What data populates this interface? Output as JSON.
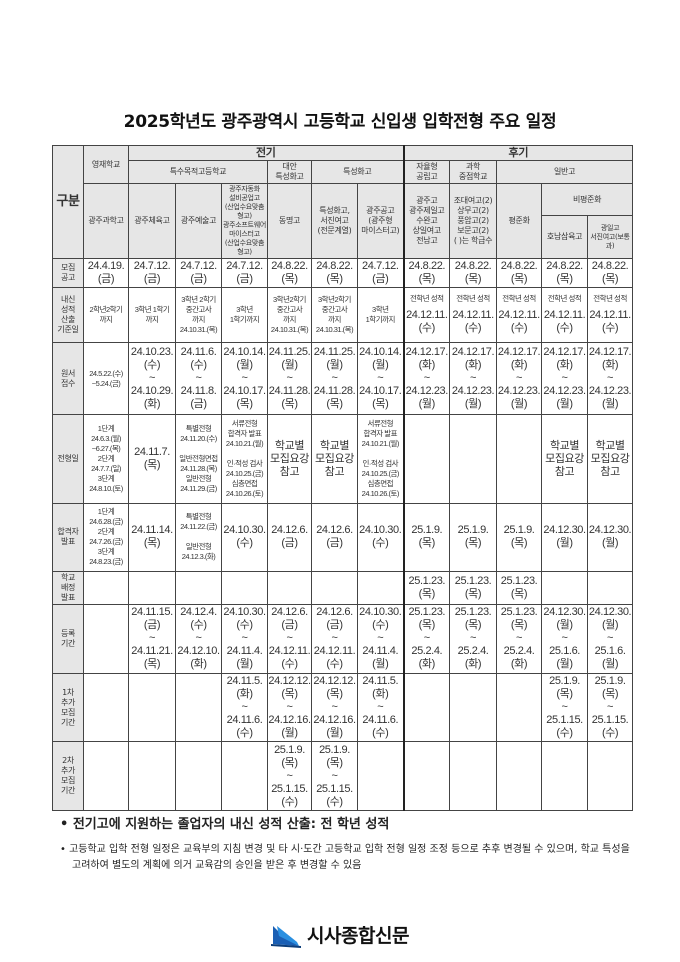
{
  "title": "2025학년도 광주광역시 고등학교 신입생 입학전형 주요 일정",
  "header": {
    "gubun": "구분",
    "jeongi": "전기",
    "hugi": "후기",
    "yeongjae": "영재학교",
    "teuksu": "특수목적고등학교",
    "daean": "대안\n특성화고",
    "teukseong": "특성화고",
    "jayul": "자율형\n공립고",
    "gwahak": "과학\n중점학교",
    "ilban": "일반고",
    "bipyeongjun": "비평준화",
    "schools": {
      "gwangju_sci": "광주과학고",
      "gwangju_pe": "광주체육고",
      "gwangju_art": "광주예술고",
      "auto_sw": "광주자동화\n설비공업고\n(산업수요맞춤형고)\n광주소프트웨어\n마이스터고\n(산업수요맞춤형고)",
      "dongmyeong": "동명고",
      "seojin_voc": "특성화고,\n서진여고\n(전문계열)",
      "gwangju_tech": "광주공고\n(광주형\n마이스터고)",
      "autonomous": "광주고\n광주제일고\n수완고\n상일여고\n전남고",
      "science_focus": "조대여고(2)\n상무고(2)\n풍암고(2)\n보문고(2)\n( )는 학급수",
      "pyeongjun": "평준화",
      "honam": "호남삼육고",
      "gwangil": "광일고\n서진여고(보통과)"
    }
  },
  "rows": [
    {
      "label": "모집\n공고",
      "cells": [
        {
          "t": "24.4.19.\n(금)"
        },
        {
          "t": "24.7.12.\n(금)"
        },
        {
          "t": "24.7.12.\n(금)"
        },
        {
          "t": "24.7.12.\n(금)"
        },
        {
          "t": "24.8.22.\n(목)"
        },
        {
          "t": "24.8.22.\n(목)"
        },
        {
          "t": "24.7.12.\n(금)"
        },
        {
          "t": "24.8.22.\n(목)"
        },
        {
          "t": "24.8.22.\n(목)"
        },
        {
          "t": "24.8.22.\n(목)"
        },
        {
          "t": "24.8.22.\n(목)"
        },
        {
          "t": "24.8.22.\n(목)"
        }
      ]
    },
    {
      "label": "내신\n성적\n산출\n기준일",
      "cells": [
        {
          "s": "2학년2학기\n까지"
        },
        {
          "s": "3학년 1학기\n까지"
        },
        {
          "s": "3학년 2학기\n중간고사\n까지\n24.10.31.(목)"
        },
        {
          "s": "3학년\n1학기까지"
        },
        {
          "s": "3학년2학기\n중간고사\n까지\n24.10.31.(목)"
        },
        {
          "s": "3학년2학기\n중간고사\n까지\n24.10.31.(목)"
        },
        {
          "s": "3학년\n1학기까지"
        },
        {
          "n": "전학년 성적",
          "t": "24.12.11.\n(수)"
        },
        {
          "n": "전학년 성적",
          "t": "24.12.11.\n(수)"
        },
        {
          "n": "전학년 성적",
          "t": "24.12.11.\n(수)"
        },
        {
          "n": "전학년 성적",
          "t": "24.12.11.\n(수)"
        },
        {
          "n": "전학년 성적",
          "t": "24.12.11.\n(수)"
        }
      ]
    },
    {
      "label": "원서\n접수",
      "cells": [
        {
          "s": "24.5.22.(수)\n~5.24.(금)"
        },
        {
          "t": "24.10.23.\n(수)\n~\n24.10.29.\n(화)"
        },
        {
          "t": "24.11.6.\n(수)\n~\n24.11.8.\n(금)"
        },
        {
          "t": "24.10.14.\n(월)\n~\n24.10.17.\n(목)"
        },
        {
          "t": "24.11.25.\n(월)\n~\n24.11.28.\n(목)"
        },
        {
          "t": "24.11.25.\n(월)\n~\n24.11.28.\n(목)"
        },
        {
          "t": "24.10.14.\n(월)\n~\n24.10.17.\n(목)"
        },
        {
          "t": "24.12.17.\n(화)\n~\n24.12.23.\n(월)"
        },
        {
          "t": "24.12.17.\n(화)\n~\n24.12.23.\n(월)"
        },
        {
          "t": "24.12.17.\n(화)\n~\n24.12.23.\n(월)"
        },
        {
          "t": "24.12.17.\n(화)\n~\n24.12.23.\n(월)"
        },
        {
          "t": "24.12.17.\n(화)\n~\n24.12.23.\n(월)"
        }
      ]
    },
    {
      "label": "전형일",
      "cells": [
        {
          "s": "1단계\n24.6.3.(월)\n~6.27.(목)\n2단계\n24.7.7.(일)\n3단계\n24.8.10.(토)"
        },
        {
          "t": "24.11.7.\n(목)"
        },
        {
          "s": "특별전형\n24.11.20.(수)\n\n일반전형면접\n24.11.28.(목)\n일반전형\n24.11.29.(금)"
        },
        {
          "s": "서류전형\n합격자 발표\n24.10.21.(월)\n\n인·적성 검사\n24.10.25.(금)\n심층면접\n24.10.26.(토)"
        },
        {
          "t": "학교별\n모집요강\n참고"
        },
        {
          "t": "학교별\n모집요강\n참고"
        },
        {
          "s": "서류전형\n합격자 발표\n24.10.21.(월)\n\n인·적성 검사\n24.10.25.(금)\n심층면접\n24.10.26.(토)"
        },
        {},
        {},
        {},
        {
          "t": "학교별\n모집요강\n참고"
        },
        {
          "t": "학교별\n모집요강\n참고"
        }
      ]
    },
    {
      "label": "합격자\n발표",
      "cells": [
        {
          "s": "1단계\n24.6.28.(금)\n2단계\n24.7.26.(금)\n3단계\n24.8.23.(금)"
        },
        {
          "t": "24.11.14.\n(목)"
        },
        {
          "s": "특별전형\n24.11.22.(금)\n\n일반전형\n24.12.3.(화)"
        },
        {
          "t": "24.10.30.\n(수)"
        },
        {
          "t": "24.12.6.\n(금)"
        },
        {
          "t": "24.12.6.\n(금)"
        },
        {
          "t": "24.10.30.\n(수)"
        },
        {
          "t": "25.1.9.\n(목)"
        },
        {
          "t": "25.1.9.\n(목)"
        },
        {
          "t": "25.1.9.\n(목)"
        },
        {
          "t": "24.12.30.\n(월)"
        },
        {
          "t": "24.12.30.\n(월)"
        }
      ]
    },
    {
      "label": "학교\n배정\n발표",
      "cells": [
        {},
        {},
        {},
        {},
        {},
        {},
        {},
        {
          "t": "25.1.23.\n(목)"
        },
        {
          "t": "25.1.23.\n(목)"
        },
        {
          "t": "25.1.23.\n(목)"
        },
        {},
        {}
      ]
    },
    {
      "label": "등록\n기간",
      "cells": [
        {},
        {
          "t": "24.11.15.\n(금)\n~\n24.11.21.\n(목)"
        },
        {
          "t": "24.12.4.\n(수)\n~\n24.12.10.\n(화)"
        },
        {
          "t": "24.10.30.\n(수)\n~\n24.11.4.\n(월)"
        },
        {
          "t": "24.12.6.\n(금)\n~\n24.12.11.\n(수)"
        },
        {
          "t": "24.12.6.\n(금)\n~\n24.12.11.\n(수)"
        },
        {
          "t": "24.10.30.\n(수)\n~\n24.11.4.\n(월)"
        },
        {
          "t": "25.1.23.\n(목)\n~\n25.2.4.\n(화)"
        },
        {
          "t": "25.1.23.\n(목)\n~\n25.2.4.\n(화)"
        },
        {
          "t": "25.1.23.\n(목)\n~\n25.2.4.\n(화)"
        },
        {
          "t": "24.12.30.\n(월)\n~\n25.1.6.\n(월)"
        },
        {
          "t": "24.12.30.\n(월)\n~\n25.1.6.\n(월)"
        }
      ]
    },
    {
      "label": "1차\n추가\n모집\n기간",
      "cells": [
        {},
        {},
        {},
        {
          "t": "24.11.5.\n(화)\n~\n24.11.6.\n(수)"
        },
        {
          "t": "24.12.12.\n(목)\n~\n24.12.16.\n(월)"
        },
        {
          "t": "24.12.12.\n(목)\n~\n24.12.16.\n(월)"
        },
        {
          "t": "24.11.5.\n(화)\n~\n24.11.6.\n(수)"
        },
        {},
        {},
        {},
        {
          "t": "25.1.9.\n(목)\n~\n25.1.15.\n(수)"
        },
        {
          "t": "25.1.9.\n(목)\n~\n25.1.15.\n(수)"
        }
      ]
    },
    {
      "label": "2차\n추가\n모집\n기간",
      "cells": [
        {},
        {},
        {},
        {},
        {
          "t": "25.1.9.\n(목)\n~\n25.1.15.\n(수)"
        },
        {
          "t": "25.1.9.\n(목)\n~\n25.1.15.\n(수)"
        },
        {},
        {},
        {},
        {},
        {},
        {}
      ]
    }
  ],
  "notes": {
    "note1": "• 전기고에 지원하는 졸업자의 내신 성적 산출: 전 학년 성적",
    "note2": "• 고등학교 입학 전형 일정은 교육부의 지침 변경 및 타 시·도간 고등학교 입학 전형 일정 조정 등으로 추후 변경될 수 있으며, 학교 특성을 고려하여 별도의 계획에 의거 교육감의 승인을 받은 후 변경할 수 있음"
  },
  "logo": {
    "text": "시사종합신문",
    "icon": "book-logo-icon",
    "color": "#1a5fb4"
  }
}
